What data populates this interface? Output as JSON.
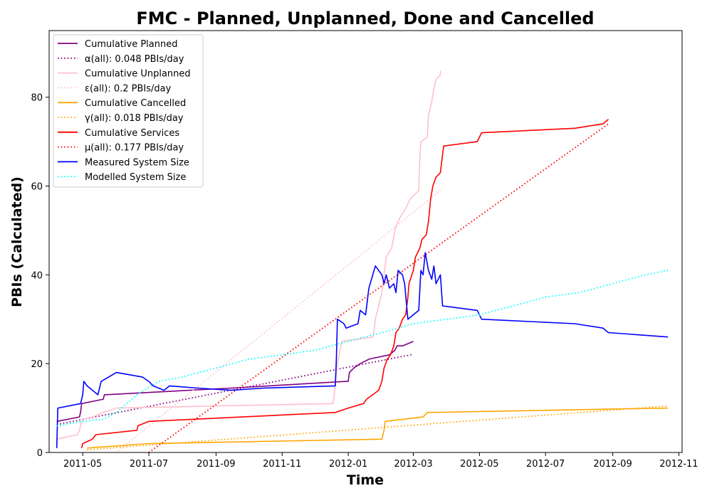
{
  "chart_data": {
    "type": "line",
    "title": "FMC - Planned, Unplanned, Done  and Cancelled",
    "xlabel": "Time",
    "ylabel": "PBIs (Calculated)",
    "x_is_date": true,
    "xlim": [
      "2011-03-31",
      "2012-11-04"
    ],
    "ylim": [
      0,
      95
    ],
    "x_ticks": [
      "2011-05-01",
      "2011-07-01",
      "2011-09-01",
      "2011-11-01",
      "2012-01-01",
      "2012-03-01",
      "2012-05-01",
      "2012-07-01",
      "2012-09-01",
      "2012-11-01"
    ],
    "x_tick_labels": [
      "2011-05",
      "2011-07",
      "2011-09",
      "2011-11",
      "2012-01",
      "2012-03",
      "2012-05",
      "2012-07",
      "2012-09",
      "2012-11"
    ],
    "y_ticks": [
      0,
      20,
      40,
      60,
      80
    ],
    "grid": false,
    "legend_position": "top-left",
    "series": [
      {
        "name": "Cumulative Planned",
        "color": "#800080",
        "style": "solid",
        "points": [
          [
            "2011-04-07",
            7
          ],
          [
            "2011-04-28",
            8
          ],
          [
            "2011-04-29",
            9
          ],
          [
            "2011-04-30",
            11
          ],
          [
            "2011-05-20",
            12
          ],
          [
            "2011-05-21",
            13
          ],
          [
            "2011-09-15",
            14.5
          ],
          [
            "2011-12-30",
            16
          ],
          [
            "2012-01-01",
            16
          ],
          [
            "2012-01-02",
            18
          ],
          [
            "2012-01-06",
            19
          ],
          [
            "2012-01-12",
            20
          ],
          [
            "2012-01-20",
            21
          ],
          [
            "2012-02-08",
            22
          ],
          [
            "2012-02-13",
            23
          ],
          [
            "2012-02-15",
            24
          ],
          [
            "2012-02-20",
            24
          ],
          [
            "2012-03-01",
            25
          ]
        ]
      },
      {
        "name": "α(all): 0.048 PBIs/day",
        "color": "#800080",
        "style": "dotted",
        "points": [
          [
            "2011-04-07",
            6.3
          ],
          [
            "2012-03-01",
            22.1
          ]
        ]
      },
      {
        "name": "Cumulative Unplanned",
        "color": "#ffc0cb",
        "style": "solid",
        "points": [
          [
            "2011-04-07",
            3
          ],
          [
            "2011-04-26",
            4
          ],
          [
            "2011-04-28",
            5
          ],
          [
            "2011-04-29",
            6
          ],
          [
            "2011-04-30",
            7
          ],
          [
            "2011-05-02",
            7.5
          ],
          [
            "2011-05-10",
            8
          ],
          [
            "2011-05-20",
            9
          ],
          [
            "2011-06-01",
            10
          ],
          [
            "2011-12-18",
            11
          ],
          [
            "2011-12-20",
            15
          ],
          [
            "2011-12-22",
            20
          ],
          [
            "2011-12-26",
            25
          ],
          [
            "2012-01-24",
            26
          ],
          [
            "2012-01-26",
            30
          ],
          [
            "2012-02-01",
            36
          ],
          [
            "2012-02-05",
            44
          ],
          [
            "2012-02-10",
            46
          ],
          [
            "2012-02-14",
            51
          ],
          [
            "2012-02-18",
            53
          ],
          [
            "2012-02-23",
            55
          ],
          [
            "2012-02-27",
            57
          ],
          [
            "2012-03-06",
            59
          ],
          [
            "2012-03-07",
            66
          ],
          [
            "2012-03-08",
            70
          ],
          [
            "2012-03-14",
            71
          ],
          [
            "2012-03-15",
            76
          ],
          [
            "2012-03-18",
            79
          ],
          [
            "2012-03-20",
            82
          ],
          [
            "2012-03-22",
            84
          ],
          [
            "2012-03-26",
            85
          ],
          [
            "2012-03-26",
            86
          ]
        ]
      },
      {
        "name": "ε(all): 0.2 PBIs/day",
        "color": "#ffc0cb",
        "style": "dotted",
        "points": [
          [
            "2011-06-01",
            0
          ],
          [
            "2012-03-26",
            59
          ]
        ]
      },
      {
        "name": "Cumulative Cancelled",
        "color": "#ffa500",
        "style": "solid",
        "points": [
          [
            "2011-05-05",
            1
          ],
          [
            "2011-07-01",
            2
          ],
          [
            "2012-02-01",
            3
          ],
          [
            "2012-02-03",
            5
          ],
          [
            "2012-02-04",
            7
          ],
          [
            "2012-03-10",
            8
          ],
          [
            "2012-03-14",
            9
          ],
          [
            "2012-10-22",
            10
          ]
        ]
      },
      {
        "name": "γ(all): 0.018 PBIs/day",
        "color": "#ffa500",
        "style": "dotted",
        "points": [
          [
            "2011-05-05",
            0.6
          ],
          [
            "2012-10-22",
            10.5
          ]
        ]
      },
      {
        "name": "Cumulative Services",
        "color": "#ff0000",
        "style": "solid",
        "points": [
          [
            "2011-04-30",
            1
          ],
          [
            "2011-05-01",
            2
          ],
          [
            "2011-05-10",
            3
          ],
          [
            "2011-05-13",
            4
          ],
          [
            "2011-06-20",
            5
          ],
          [
            "2011-06-21",
            6
          ],
          [
            "2011-07-01",
            7
          ],
          [
            "2011-12-20",
            9
          ],
          [
            "2012-01-01",
            10
          ],
          [
            "2012-01-15",
            11
          ],
          [
            "2012-01-18",
            12
          ],
          [
            "2012-01-29",
            14
          ],
          [
            "2012-02-01",
            16
          ],
          [
            "2012-02-03",
            19
          ],
          [
            "2012-02-06",
            21
          ],
          [
            "2012-02-09",
            22
          ],
          [
            "2012-02-12",
            24
          ],
          [
            "2012-02-14",
            27
          ],
          [
            "2012-02-17",
            28
          ],
          [
            "2012-02-20",
            30
          ],
          [
            "2012-02-23",
            31
          ],
          [
            "2012-02-25",
            35
          ],
          [
            "2012-02-26",
            38
          ],
          [
            "2012-03-01",
            41
          ],
          [
            "2012-03-03",
            44
          ],
          [
            "2012-03-07",
            46
          ],
          [
            "2012-03-09",
            48
          ],
          [
            "2012-03-13",
            49
          ],
          [
            "2012-03-15",
            52
          ],
          [
            "2012-03-17",
            57
          ],
          [
            "2012-03-19",
            60
          ],
          [
            "2012-03-22",
            62
          ],
          [
            "2012-03-26",
            63
          ],
          [
            "2012-03-29",
            69
          ],
          [
            "2012-04-29",
            70
          ],
          [
            "2012-05-03",
            72
          ],
          [
            "2012-07-28",
            73
          ],
          [
            "2012-08-23",
            74
          ],
          [
            "2012-08-28",
            75
          ]
        ]
      },
      {
        "name": "μ(all): 0.177 PBIs/day",
        "color": "#ff0000",
        "style": "dotted",
        "points": [
          [
            "2011-07-01",
            0
          ],
          [
            "2012-08-28",
            74
          ]
        ]
      },
      {
        "name": "Measured System Size",
        "color": "#0000ff",
        "style": "solid",
        "points": [
          [
            "2011-04-07",
            1
          ],
          [
            "2011-04-08",
            10
          ],
          [
            "2011-04-29",
            11
          ],
          [
            "2011-05-01",
            13
          ],
          [
            "2011-05-02",
            16
          ],
          [
            "2011-05-05",
            15
          ],
          [
            "2011-05-15",
            13
          ],
          [
            "2011-05-18",
            16
          ],
          [
            "2011-05-25",
            17
          ],
          [
            "2011-06-01",
            18
          ],
          [
            "2011-06-25",
            17
          ],
          [
            "2011-07-01",
            16
          ],
          [
            "2011-07-05",
            15
          ],
          [
            "2011-07-15",
            14
          ],
          [
            "2011-07-20",
            15
          ],
          [
            "2011-08-15",
            14.5
          ],
          [
            "2011-09-15",
            14
          ],
          [
            "2011-10-15",
            14.5
          ],
          [
            "2011-12-20",
            15
          ],
          [
            "2011-12-21",
            21
          ],
          [
            "2011-12-22",
            30
          ],
          [
            "2011-12-28",
            29
          ],
          [
            "2011-12-30",
            28
          ],
          [
            "2012-01-10",
            29
          ],
          [
            "2012-01-12",
            32
          ],
          [
            "2012-01-17",
            31
          ],
          [
            "2012-01-20",
            37
          ],
          [
            "2012-01-26",
            42
          ],
          [
            "2012-02-01",
            40
          ],
          [
            "2012-02-03",
            38
          ],
          [
            "2012-02-05",
            40
          ],
          [
            "2012-02-08",
            37
          ],
          [
            "2012-02-12",
            38
          ],
          [
            "2012-02-14",
            36
          ],
          [
            "2012-02-16",
            41
          ],
          [
            "2012-02-20",
            40
          ],
          [
            "2012-02-22",
            38
          ],
          [
            "2012-02-25",
            30
          ],
          [
            "2012-03-01",
            31
          ],
          [
            "2012-03-06",
            32
          ],
          [
            "2012-03-08",
            41
          ],
          [
            "2012-03-10",
            40
          ],
          [
            "2012-03-12",
            45
          ],
          [
            "2012-03-15",
            41
          ],
          [
            "2012-03-18",
            39
          ],
          [
            "2012-03-20",
            42
          ],
          [
            "2012-03-22",
            38
          ],
          [
            "2012-03-26",
            40
          ],
          [
            "2012-03-28",
            33
          ],
          [
            "2012-04-29",
            32
          ],
          [
            "2012-05-03",
            30
          ],
          [
            "2012-07-28",
            29
          ],
          [
            "2012-08-23",
            28
          ],
          [
            "2012-08-28",
            27
          ],
          [
            "2012-10-22",
            26
          ]
        ]
      },
      {
        "name": "Modelled System Size",
        "color": "#00ffff",
        "style": "dotted",
        "points": [
          [
            "2011-04-07",
            6
          ],
          [
            "2011-05-01",
            7
          ],
          [
            "2011-05-20",
            7.5
          ],
          [
            "2011-06-01",
            9
          ],
          [
            "2011-06-20",
            13
          ],
          [
            "2011-07-10",
            16
          ],
          [
            "2011-08-01",
            17
          ],
          [
            "2011-09-01",
            19
          ],
          [
            "2011-10-01",
            21
          ],
          [
            "2011-11-01",
            22
          ],
          [
            "2011-12-01",
            23
          ],
          [
            "2012-01-01",
            25
          ],
          [
            "2012-02-01",
            27
          ],
          [
            "2012-03-01",
            29
          ],
          [
            "2012-04-01",
            30
          ],
          [
            "2012-05-01",
            31
          ],
          [
            "2012-06-01",
            33
          ],
          [
            "2012-07-01",
            35
          ],
          [
            "2012-08-01",
            36
          ],
          [
            "2012-09-01",
            38
          ],
          [
            "2012-10-01",
            40
          ],
          [
            "2012-10-22",
            41
          ]
        ]
      }
    ]
  }
}
